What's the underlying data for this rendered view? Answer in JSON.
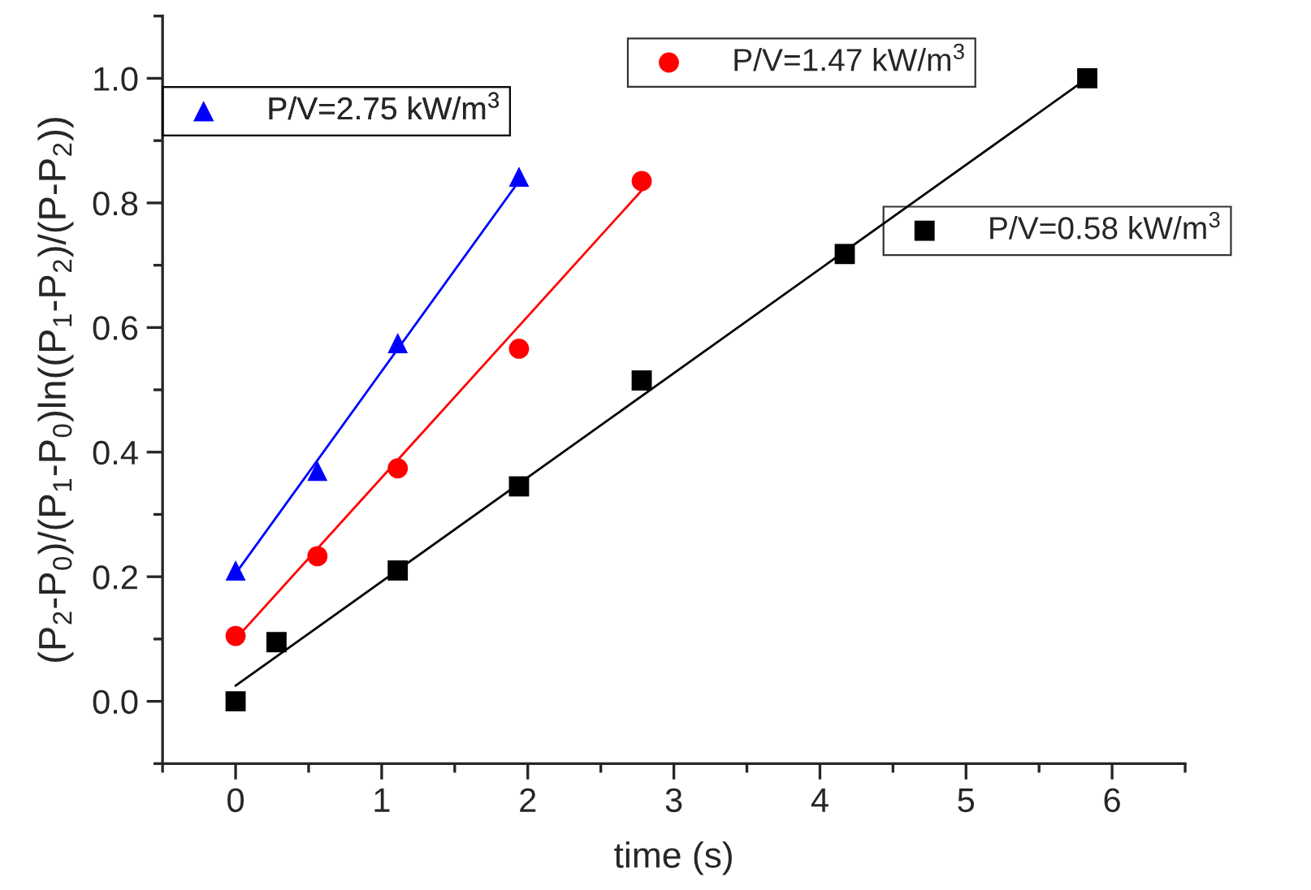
{
  "chart_data": {
    "type": "scatter",
    "xlabel": "time (s)",
    "ylabel": "(P$_{2}$-P$_{0}$)/(P$_{1}$-P$_{0}$)ln((P$_{1}$-P$_{2}$)/(P-P$_{2}$))",
    "xlim": [
      -0.5,
      6.5
    ],
    "xticks": [
      0,
      1,
      2,
      3,
      4,
      5,
      6
    ],
    "ylim": [
      -0.1,
      1.1
    ],
    "yticks": [
      {
        "value": 0.0,
        "label": "0.0"
      },
      {
        "value": 0.2,
        "label": "0.2"
      },
      {
        "value": 0.4,
        "label": "0.4"
      },
      {
        "value": 0.6,
        "label": "0.6"
      },
      {
        "value": 0.8,
        "label": "0.8"
      },
      {
        "value": 1.0,
        "label": "1.0"
      }
    ],
    "grid": false,
    "legend": "top right",
    "series": [
      {
        "name": "P/V=0.58 kW/m$^{3}$",
        "color": "#000000",
        "marker": "square",
        "x": [
          0,
          0.28,
          1.11,
          1.94,
          2.78,
          4.17,
          5.83
        ],
        "values": [
          0.0,
          0.095,
          0.21,
          0.345,
          0.515,
          0.718,
          1.0
        ]
      },
      {
        "name": "P/V=1.47 kW/m$^{3}$",
        "color": "#ff0000",
        "marker": "circle",
        "x": [
          0,
          0.56,
          1.11,
          1.94,
          2.78
        ],
        "values": [
          0.105,
          0.233,
          0.374,
          0.566,
          0.835
        ]
      },
      {
        "name": "P/V=2.75 kW/m$^{3}$",
        "color": "#0000ff",
        "marker": "triangle",
        "x": [
          0,
          0.56,
          1.11,
          1.94
        ],
        "values": [
          0.21,
          0.37,
          0.575,
          0.842
        ]
      },
      {
        "type": "line",
        "color": "#000000",
        "x": [
          0,
          5.83
        ],
        "values": [
          0.025,
          1.0
        ]
      },
      {
        "type": "line",
        "color": "#ff0000",
        "x": [
          0,
          2.78
        ],
        "values": [
          0.1,
          0.82
        ]
      },
      {
        "type": "line",
        "color": "#0000ff",
        "x": [
          0,
          1.94
        ],
        "values": [
          0.205,
          0.835
        ]
      }
    ]
  }
}
